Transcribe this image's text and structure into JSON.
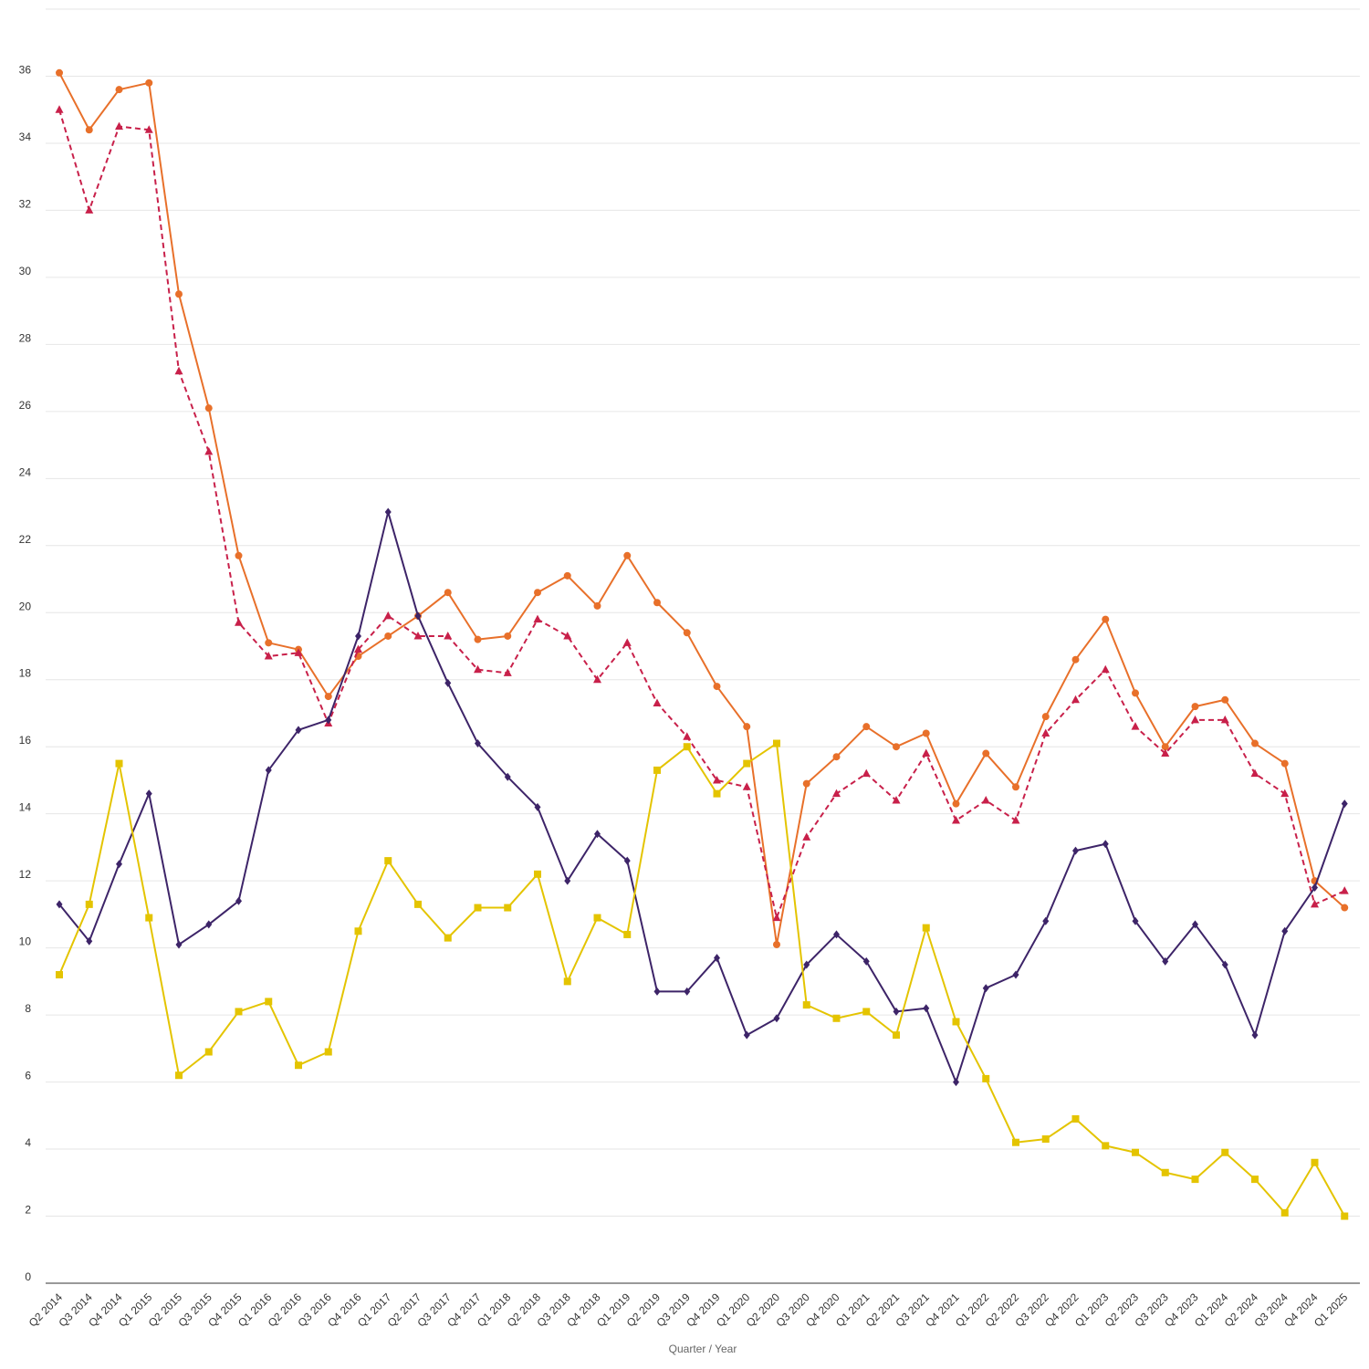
{
  "chart_data": {
    "type": "line",
    "title": "",
    "xlabel": "Quarter / Year",
    "ylabel": "",
    "ylim": [
      0,
      38
    ],
    "yticks": [
      0,
      2,
      4,
      6,
      8,
      10,
      12,
      14,
      16,
      18,
      20,
      22,
      24,
      26,
      28,
      30,
      32,
      34,
      36
    ],
    "grid": true,
    "legend": "none",
    "categories": [
      "Q2 2014",
      "Q3 2014",
      "Q4 2014",
      "Q1 2015",
      "Q2 2015",
      "Q3 2015",
      "Q4 2015",
      "Q1 2016",
      "Q2 2016",
      "Q3 2016",
      "Q4 2016",
      "Q1 2017",
      "Q2 2017",
      "Q3 2017",
      "Q4 2017",
      "Q1 2018",
      "Q2 2018",
      "Q3 2018",
      "Q4 2018",
      "Q1 2019",
      "Q2 2019",
      "Q3 2019",
      "Q4 2019",
      "Q1 2020",
      "Q2 2020",
      "Q3 2020",
      "Q4 2020",
      "Q1 2021",
      "Q2 2021",
      "Q3 2021",
      "Q4 2021",
      "Q1 2022",
      "Q2 2022",
      "Q3 2022",
      "Q4 2022",
      "Q1 2023",
      "Q2 2023",
      "Q3 2023",
      "Q4 2023",
      "Q1 2024",
      "Q2 2024",
      "Q3 2024",
      "Q4 2024",
      "Q1 2025"
    ],
    "series": [
      {
        "color": "#e8702a",
        "marker": "circle",
        "dash": "solid",
        "values": [
          36.1,
          34.4,
          35.6,
          35.8,
          29.5,
          26.1,
          21.7,
          19.1,
          18.9,
          17.5,
          18.7,
          19.3,
          19.9,
          20.6,
          19.2,
          19.3,
          20.6,
          21.1,
          20.2,
          21.7,
          20.3,
          19.4,
          17.8,
          16.6,
          10.1,
          14.9,
          15.7,
          16.6,
          16.0,
          16.4,
          14.3,
          15.8,
          14.8,
          16.9,
          18.6,
          19.8,
          17.6,
          16.0,
          17.2,
          17.4,
          16.1,
          15.5,
          12.0,
          11.2
        ]
      },
      {
        "color": "#c8204a",
        "marker": "triangle",
        "dash": "dashed",
        "values": [
          35.0,
          32.0,
          34.5,
          34.4,
          27.2,
          24.8,
          19.7,
          18.7,
          18.8,
          16.7,
          18.9,
          19.9,
          19.3,
          19.3,
          18.3,
          18.2,
          19.8,
          19.3,
          18.0,
          19.1,
          17.3,
          16.3,
          15.0,
          14.8,
          10.9,
          13.3,
          14.6,
          15.2,
          14.4,
          15.8,
          13.8,
          14.4,
          13.8,
          16.4,
          17.4,
          18.3,
          16.6,
          15.8,
          16.8,
          16.8,
          15.2,
          14.6,
          11.3,
          11.7
        ]
      },
      {
        "color": "#3d2468",
        "marker": "diamond",
        "dash": "solid",
        "values": [
          11.3,
          10.2,
          12.5,
          14.6,
          10.1,
          10.7,
          11.4,
          15.3,
          16.5,
          16.8,
          19.3,
          23.0,
          19.9,
          17.9,
          16.1,
          15.1,
          14.2,
          12.0,
          13.4,
          12.6,
          8.7,
          8.7,
          9.7,
          7.4,
          7.9,
          9.5,
          10.4,
          9.6,
          8.1,
          8.2,
          6.0,
          8.8,
          9.2,
          10.8,
          12.9,
          13.1,
          10.8,
          9.6,
          10.7,
          9.5,
          7.4,
          10.5,
          11.8,
          14.3
        ]
      },
      {
        "color": "#e4c400",
        "marker": "square",
        "dash": "solid",
        "values": [
          9.2,
          11.3,
          15.5,
          10.9,
          6.2,
          6.9,
          8.1,
          8.4,
          6.5,
          6.9,
          10.5,
          12.6,
          11.3,
          10.3,
          11.2,
          11.2,
          12.2,
          9.0,
          10.9,
          10.4,
          15.3,
          16.0,
          14.6,
          15.5,
          16.1,
          8.3,
          7.9,
          8.1,
          7.4,
          10.6,
          7.8,
          6.1,
          4.2,
          4.3,
          4.9,
          4.1,
          3.9,
          3.3,
          3.1,
          3.9,
          3.1,
          2.1,
          3.6,
          2.0
        ]
      }
    ]
  }
}
